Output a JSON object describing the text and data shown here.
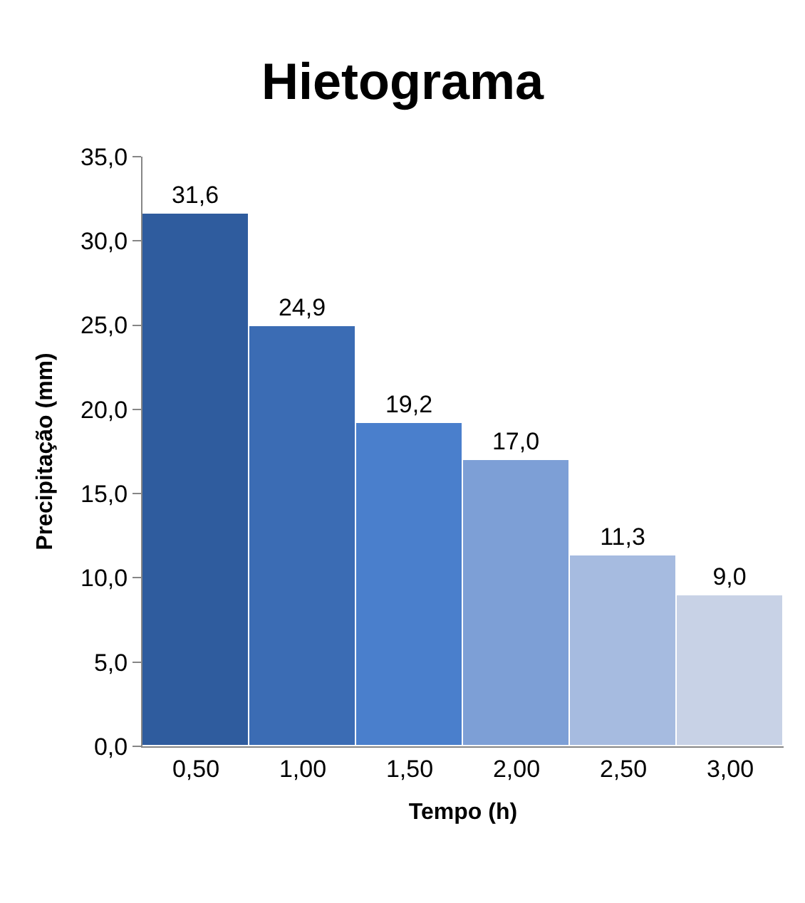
{
  "chart_data": {
    "type": "bar",
    "title": "Hietograma",
    "xlabel": "Tempo (h)",
    "ylabel": "Precipitação (mm)",
    "categories": [
      "0,50",
      "1,00",
      "1,50",
      "2,00",
      "2,50",
      "3,00"
    ],
    "values": [
      31.6,
      24.9,
      19.2,
      17.0,
      11.3,
      9.0
    ],
    "value_labels": [
      "31,6",
      "24,9",
      "19,2",
      "17,0",
      "11,3",
      "9,0"
    ],
    "colors": [
      "#2f5c9e",
      "#3b6cb4",
      "#4a7fcc",
      "#7d9fd6",
      "#a6bbe0",
      "#c8d2e6"
    ],
    "ylim": [
      0,
      35
    ],
    "yticks": [
      {
        "value": 0,
        "label": "0,0"
      },
      {
        "value": 5,
        "label": "5,0"
      },
      {
        "value": 10,
        "label": "10,0"
      },
      {
        "value": 15,
        "label": "15,0"
      },
      {
        "value": 20,
        "label": "20,0"
      },
      {
        "value": 25,
        "label": "25,0"
      },
      {
        "value": 30,
        "label": "30,0"
      },
      {
        "value": 35,
        "label": "35,0"
      }
    ],
    "orientation": "vertical"
  }
}
